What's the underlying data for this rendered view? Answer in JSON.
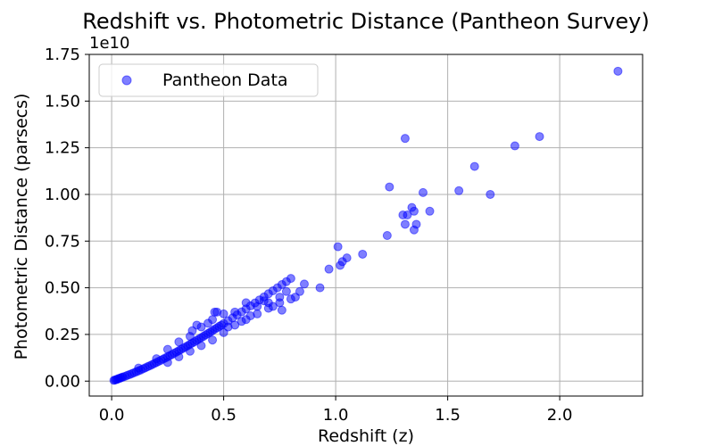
{
  "chart_data": {
    "type": "scatter",
    "title": "Redshift vs. Photometric Distance (Pantheon Survey)",
    "xlabel": "Redshift (z)",
    "ylabel": "Photometric Distance (parsecs)",
    "y_offset_label": "1e10",
    "xlim": [
      -0.1,
      2.37
    ],
    "ylim": [
      -0.08,
      1.75
    ],
    "y_scale_factor": 10000000000.0,
    "x_ticks": [
      0.0,
      0.5,
      1.0,
      1.5,
      2.0
    ],
    "x_tick_labels": [
      "0.0",
      "0.5",
      "1.0",
      "1.5",
      "2.0"
    ],
    "y_ticks": [
      0.0,
      0.25,
      0.5,
      0.75,
      1.0,
      1.25,
      1.5,
      1.75
    ],
    "y_tick_labels": [
      "0.00",
      "0.25",
      "0.50",
      "0.75",
      "1.00",
      "1.25",
      "1.50",
      "1.75"
    ],
    "grid": true,
    "legend_position": "top-left",
    "series": [
      {
        "name": "Pantheon Data",
        "color": "#0000ff",
        "alpha": 0.5,
        "points": [
          [
            0.01,
            0.004
          ],
          [
            0.015,
            0.006
          ],
          [
            0.02,
            0.008
          ],
          [
            0.025,
            0.01
          ],
          [
            0.03,
            0.013
          ],
          [
            0.035,
            0.015
          ],
          [
            0.04,
            0.017
          ],
          [
            0.045,
            0.02
          ],
          [
            0.05,
            0.022
          ],
          [
            0.06,
            0.026
          ],
          [
            0.07,
            0.031
          ],
          [
            0.08,
            0.035
          ],
          [
            0.09,
            0.04
          ],
          [
            0.1,
            0.045
          ],
          [
            0.11,
            0.05
          ],
          [
            0.12,
            0.055
          ],
          [
            0.13,
            0.06
          ],
          [
            0.14,
            0.066
          ],
          [
            0.15,
            0.071
          ],
          [
            0.16,
            0.077
          ],
          [
            0.17,
            0.082
          ],
          [
            0.18,
            0.088
          ],
          [
            0.19,
            0.094
          ],
          [
            0.2,
            0.1
          ],
          [
            0.21,
            0.106
          ],
          [
            0.22,
            0.112
          ],
          [
            0.23,
            0.118
          ],
          [
            0.24,
            0.124
          ],
          [
            0.25,
            0.13
          ],
          [
            0.26,
            0.137
          ],
          [
            0.27,
            0.143
          ],
          [
            0.28,
            0.15
          ],
          [
            0.29,
            0.156
          ],
          [
            0.3,
            0.163
          ],
          [
            0.31,
            0.17
          ],
          [
            0.32,
            0.177
          ],
          [
            0.33,
            0.183
          ],
          [
            0.34,
            0.19
          ],
          [
            0.35,
            0.197
          ],
          [
            0.36,
            0.204
          ],
          [
            0.37,
            0.211
          ],
          [
            0.38,
            0.218
          ],
          [
            0.39,
            0.226
          ],
          [
            0.4,
            0.233
          ],
          [
            0.41,
            0.24
          ],
          [
            0.42,
            0.248
          ],
          [
            0.43,
            0.255
          ],
          [
            0.44,
            0.262
          ],
          [
            0.45,
            0.27
          ],
          [
            0.46,
            0.278
          ],
          [
            0.47,
            0.285
          ],
          [
            0.48,
            0.293
          ],
          [
            0.49,
            0.3
          ],
          [
            0.5,
            0.308
          ],
          [
            0.52,
            0.323
          ],
          [
            0.54,
            0.339
          ],
          [
            0.56,
            0.355
          ],
          [
            0.58,
            0.371
          ],
          [
            0.6,
            0.387
          ],
          [
            0.62,
            0.403
          ],
          [
            0.64,
            0.419
          ],
          [
            0.66,
            0.435
          ],
          [
            0.68,
            0.451
          ],
          [
            0.7,
            0.468
          ],
          [
            0.72,
            0.484
          ],
          [
            0.74,
            0.5
          ],
          [
            0.76,
            0.517
          ],
          [
            0.78,
            0.533
          ],
          [
            0.8,
            0.55
          ],
          [
            0.12,
            0.07
          ],
          [
            0.2,
            0.12
          ],
          [
            0.25,
            0.17
          ],
          [
            0.3,
            0.21
          ],
          [
            0.35,
            0.24
          ],
          [
            0.4,
            0.29
          ],
          [
            0.45,
            0.33
          ],
          [
            0.5,
            0.36
          ],
          [
            0.55,
            0.37
          ],
          [
            0.6,
            0.42
          ],
          [
            0.65,
            0.4
          ],
          [
            0.7,
            0.42
          ],
          [
            0.75,
            0.45
          ],
          [
            0.25,
            0.1
          ],
          [
            0.3,
            0.13
          ],
          [
            0.35,
            0.16
          ],
          [
            0.4,
            0.19
          ],
          [
            0.45,
            0.22
          ],
          [
            0.5,
            0.26
          ],
          [
            0.55,
            0.3
          ],
          [
            0.6,
            0.33
          ],
          [
            0.65,
            0.36
          ],
          [
            0.7,
            0.39
          ],
          [
            0.75,
            0.42
          ],
          [
            0.78,
            0.48
          ],
          [
            0.8,
            0.44
          ],
          [
            0.82,
            0.45
          ],
          [
            0.84,
            0.48
          ],
          [
            0.86,
            0.52
          ],
          [
            0.47,
            0.37
          ],
          [
            0.46,
            0.37
          ],
          [
            0.36,
            0.27
          ],
          [
            0.38,
            0.3
          ],
          [
            0.43,
            0.31
          ],
          [
            0.52,
            0.29
          ],
          [
            0.58,
            0.32
          ],
          [
            0.62,
            0.35
          ],
          [
            0.68,
            0.43
          ],
          [
            0.72,
            0.4
          ],
          [
            0.76,
            0.38
          ],
          [
            0.93,
            0.5
          ],
          [
            0.97,
            0.6
          ],
          [
            1.01,
            0.72
          ],
          [
            1.02,
            0.62
          ],
          [
            1.03,
            0.64
          ],
          [
            1.05,
            0.66
          ],
          [
            1.12,
            0.68
          ],
          [
            1.23,
            0.78
          ],
          [
            1.24,
            1.04
          ],
          [
            1.3,
            0.89
          ],
          [
            1.31,
            1.3
          ],
          [
            1.31,
            0.84
          ],
          [
            1.32,
            0.89
          ],
          [
            1.34,
            0.93
          ],
          [
            1.35,
            0.91
          ],
          [
            1.35,
            0.81
          ],
          [
            1.36,
            0.84
          ],
          [
            1.39,
            1.01
          ],
          [
            1.42,
            0.91
          ],
          [
            1.55,
            1.02
          ],
          [
            1.62,
            1.15
          ],
          [
            1.69,
            1.0
          ],
          [
            1.8,
            1.26
          ],
          [
            1.91,
            1.31
          ],
          [
            2.26,
            1.66
          ]
        ]
      }
    ]
  }
}
